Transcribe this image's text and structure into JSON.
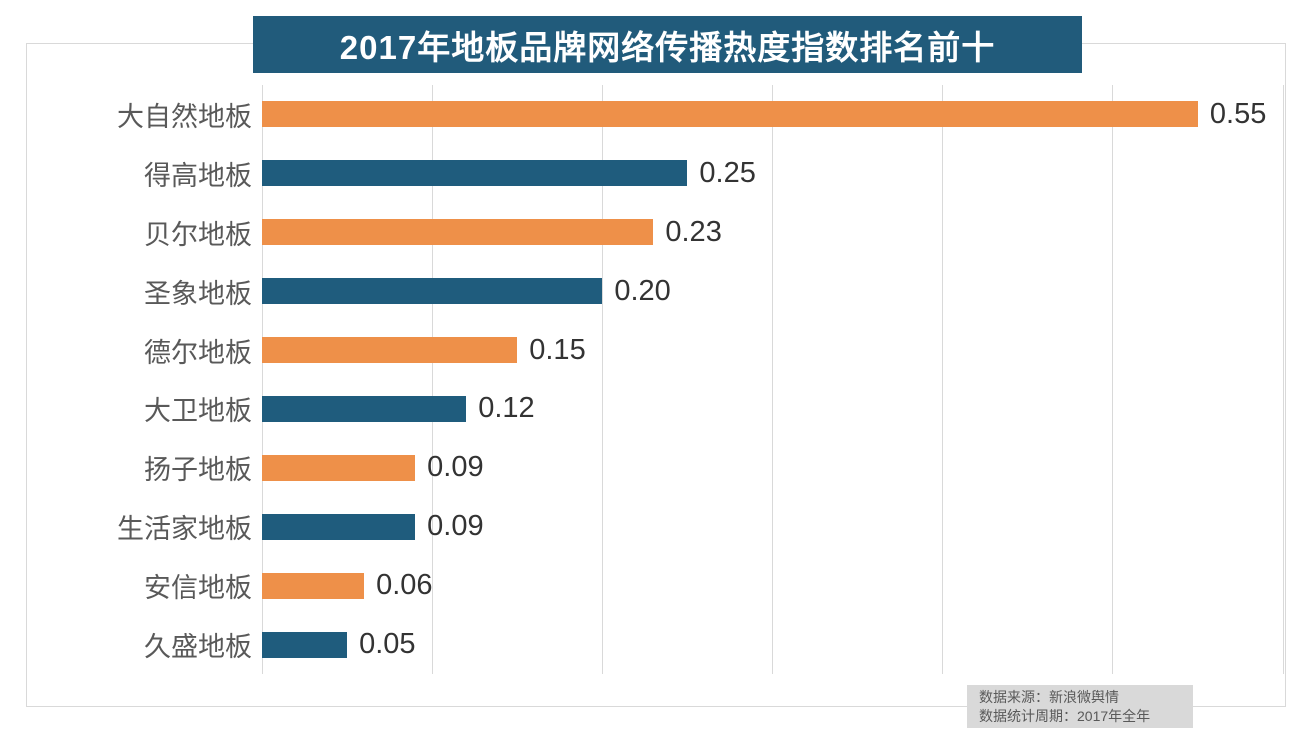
{
  "title": "2017年地板品牌网络传播热度指数排名前十",
  "source_note": {
    "line1": "数据来源：新浪微舆情",
    "line2": "数据统计周期：2017年全年"
  },
  "colors": {
    "banner_bg": "#215b7b",
    "orange_bar": "#ee9049",
    "blue_bar": "#1f5c7d",
    "grid_line": "#d9d9d9",
    "category_text": "#595959",
    "value_text": "#333333",
    "note_bg": "#d9d9d9",
    "note_text": "#595959",
    "title_text": "#ffffff"
  },
  "chart_data": {
    "type": "bar",
    "orientation": "horizontal",
    "title": "2017年地板品牌网络传播热度指数排名前十",
    "categories": [
      "大自然地板",
      "得高地板",
      "贝尔地板",
      "圣象地板",
      "德尔地板",
      "大卫地板",
      "扬子地板",
      "生活家地板",
      "安信地板",
      "久盛地板"
    ],
    "values": [
      0.55,
      0.25,
      0.23,
      0.2,
      0.15,
      0.12,
      0.09,
      0.09,
      0.06,
      0.05
    ],
    "value_labels": [
      "0.55",
      "0.25",
      "0.23",
      "0.20",
      "0.15",
      "0.12",
      "0.09",
      "0.09",
      "0.06",
      "0.05"
    ],
    "xlabel": "",
    "ylabel": "",
    "xlim": [
      0,
      0.6
    ],
    "gridline_values": [
      0,
      0.1,
      0.2,
      0.3,
      0.4,
      0.5,
      0.6
    ],
    "bar_color_pattern": [
      "#ee9049",
      "#1f5c7d"
    ],
    "grid": "vertical gridlines only, no axis tick labels",
    "legend": "none",
    "annotation": "data labels at bar ends"
  }
}
